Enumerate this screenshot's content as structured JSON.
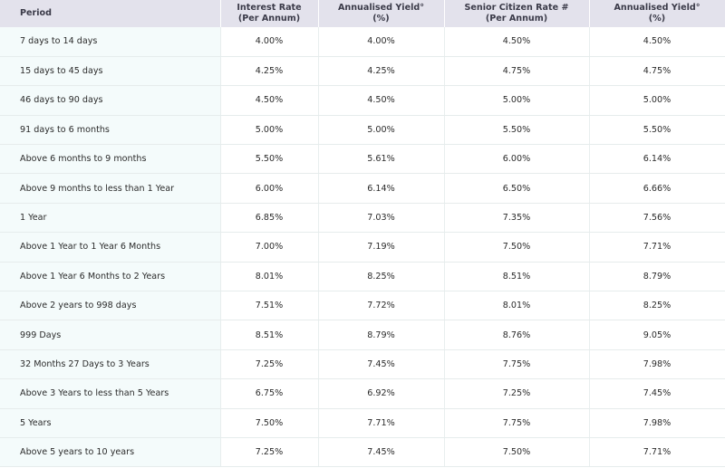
{
  "table": {
    "headers": [
      {
        "line1": "Period",
        "line2": ""
      },
      {
        "line1": "Interest Rate",
        "line2": "(Per Annum)"
      },
      {
        "line1": "Annualised Yield°",
        "line2": "(%)"
      },
      {
        "line1": "Senior Citizen Rate #",
        "line2": "(Per Annum)"
      },
      {
        "line1": "Annualised Yield°",
        "line2": "(%)"
      }
    ],
    "rows": [
      [
        "7 days to 14 days",
        "4.00%",
        "4.00%",
        "4.50%",
        "4.50%"
      ],
      [
        "15 days to 45 days",
        "4.25%",
        "4.25%",
        "4.75%",
        "4.75%"
      ],
      [
        "46 days to 90 days",
        "4.50%",
        "4.50%",
        "5.00%",
        "5.00%"
      ],
      [
        "91 days to 6 months",
        "5.00%",
        "5.00%",
        "5.50%",
        "5.50%"
      ],
      [
        "Above 6 months to 9 months",
        "5.50%",
        "5.61%",
        "6.00%",
        "6.14%"
      ],
      [
        "Above 9 months to less than 1 Year",
        "6.00%",
        "6.14%",
        "6.50%",
        "6.66%"
      ],
      [
        "1 Year",
        "6.85%",
        "7.03%",
        "7.35%",
        "7.56%"
      ],
      [
        "Above 1 Year to 1 Year 6 Months",
        "7.00%",
        "7.19%",
        "7.50%",
        "7.71%"
      ],
      [
        "Above 1 Year 6 Months to 2 Years",
        "8.01%",
        "8.25%",
        "8.51%",
        "8.79%"
      ],
      [
        "Above 2 years to 998 days",
        "7.51%",
        "7.72%",
        "8.01%",
        "8.25%"
      ],
      [
        "999 Days",
        "8.51%",
        "8.79%",
        "8.76%",
        "9.05%"
      ],
      [
        "32 Months 27 Days to 3 Years",
        "7.25%",
        "7.45%",
        "7.75%",
        "7.98%"
      ],
      [
        "Above 3 Years to less than 5 Years",
        "6.75%",
        "6.92%",
        "7.25%",
        "7.45%"
      ],
      [
        "5 Years",
        "7.50%",
        "7.71%",
        "7.75%",
        "7.98%"
      ],
      [
        "Above 5 years to 10 years",
        "7.25%",
        "7.45%",
        "7.50%",
        "7.71%"
      ]
    ]
  },
  "colors": {
    "header_bg": "#e3e2ec",
    "first_col_bg": "#f4fbfb",
    "row_border": "#e6ecec"
  }
}
